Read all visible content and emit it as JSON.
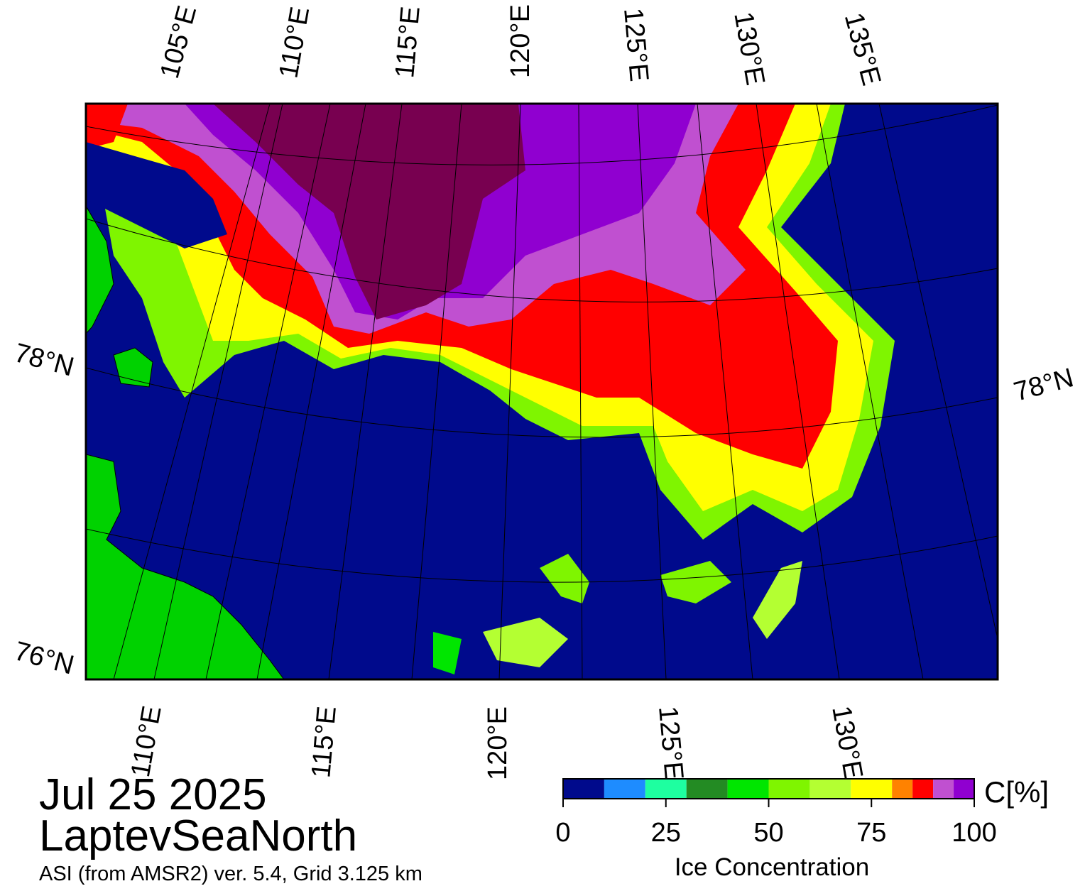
{
  "map": {
    "top_lon_labels": [
      "105°E",
      "110°E",
      "115°E",
      "120°E",
      "125°E",
      "130°E",
      "135°E"
    ],
    "bottom_lon_labels": [
      "110°E",
      "115°E",
      "120°E",
      "125°E",
      "130°E"
    ],
    "left_lat_labels": [
      "78°N",
      "76°N"
    ],
    "right_lat_labels": [
      "78°N"
    ]
  },
  "date": "Jul 25 2025",
  "region": "LaptevSeaNorth",
  "source": "ASI (from AMSR2) ver. 5.4,  Grid 3.125 km",
  "colorbar": {
    "label": "Ice Concentration",
    "unit": "C[%]",
    "bins": [
      0,
      10,
      20,
      30,
      40,
      50,
      60,
      70,
      80,
      85,
      90,
      95,
      100
    ],
    "colors": [
      "#000a8c",
      "#1e8cff",
      "#1effa0",
      "#238b23",
      "#00e600",
      "#7ff500",
      "#b4ff32",
      "#ffff00",
      "#ff8200",
      "#ff0000",
      "#c050d0",
      "#9000d0"
    ],
    "lim": [
      0,
      100
    ],
    "ticks": [
      0,
      25,
      50,
      75,
      100
    ]
  }
}
